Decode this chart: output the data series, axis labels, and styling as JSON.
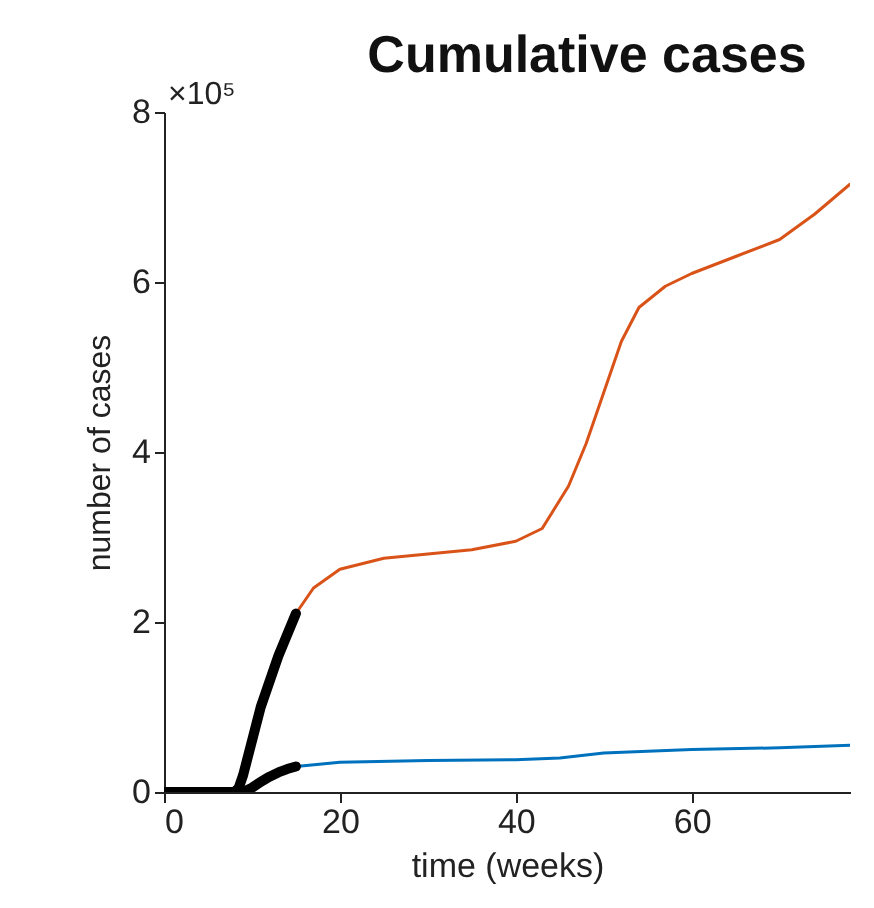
{
  "chart_data": {
    "type": "line",
    "title": "Cumulative cases",
    "xlabel": "time (weeks)",
    "ylabel": "number of cases",
    "annotations": [
      "×10⁵"
    ],
    "xlim": [
      0,
      78
    ],
    "xticks": [
      0,
      20,
      40,
      60
    ],
    "ylim": [
      0,
      8
    ],
    "yticks": [
      0,
      2,
      4,
      6,
      8
    ],
    "grid": false,
    "marker": "none",
    "line_style": "solid",
    "series": [
      {
        "color": "#d95319",
        "x": [
          15,
          17,
          20,
          25,
          30,
          35,
          40,
          43,
          46,
          48,
          50,
          52,
          54,
          57,
          60,
          65,
          70,
          74,
          78
        ],
        "values": [
          2.1,
          2.4,
          2.62,
          2.75,
          2.8,
          2.85,
          2.95,
          3.1,
          3.6,
          4.1,
          4.7,
          5.3,
          5.7,
          5.95,
          6.1,
          6.3,
          6.5,
          6.8,
          7.15
        ]
      },
      {
        "color": "#0072bd",
        "x": [
          15,
          20,
          30,
          40,
          45,
          50,
          60,
          70,
          78
        ],
        "values": [
          0.3,
          0.35,
          0.37,
          0.38,
          0.4,
          0.46,
          0.5,
          0.52,
          0.55
        ]
      },
      {
        "color": "#000000",
        "x": [
          0,
          2,
          4,
          6,
          8,
          8.5,
          9,
          10,
          11,
          12,
          13,
          14,
          15
        ],
        "values": [
          0,
          0,
          0,
          0,
          0,
          0.05,
          0.2,
          0.6,
          1.0,
          1.3,
          1.6,
          1.85,
          2.1
        ]
      },
      {
        "color": "#000000",
        "x": [
          0,
          2,
          4,
          6,
          8,
          9,
          10,
          11,
          12,
          13,
          14,
          15
        ],
        "values": [
          0,
          0,
          0,
          0,
          0,
          0,
          0.05,
          0.12,
          0.18,
          0.23,
          0.27,
          0.3
        ]
      }
    ]
  }
}
